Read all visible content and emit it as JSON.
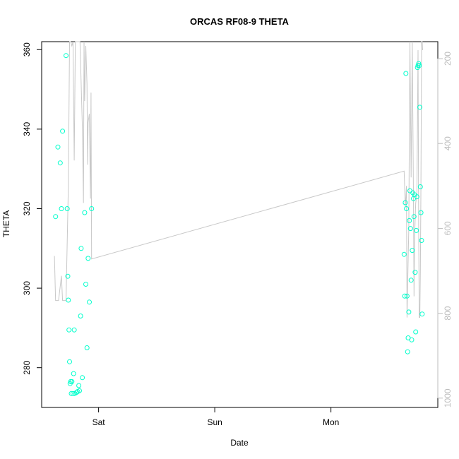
{
  "chart_data": {
    "type": "scatter",
    "title": "ORCAS RF08-9 THETA",
    "xlabel": "Date",
    "ylabel": "THETA",
    "x_ticks": [
      "Sat",
      "Sun",
      "Mon"
    ],
    "x_tick_days": [
      1,
      2,
      3
    ],
    "xlim_days": [
      0.51,
      3.92
    ],
    "ylim": [
      270,
      362
    ],
    "y_ticks": [
      280,
      300,
      320,
      340,
      360
    ],
    "y2lim": [
      1022,
      160
    ],
    "y2_ticks": [
      200,
      400,
      600,
      800,
      1000
    ],
    "grid": false,
    "colors": {
      "points": "#00ffcc",
      "line": "#c8c8c8",
      "right_axis": "#bdbdbd"
    },
    "series": [
      {
        "type": "scatter",
        "points": [
          [
            0.63,
            318
          ],
          [
            0.65,
            335.5
          ],
          [
            0.67,
            331.5
          ],
          [
            0.68,
            320
          ],
          [
            0.69,
            339.5
          ],
          [
            0.72,
            358.5
          ],
          [
            0.73,
            320
          ],
          [
            0.735,
            303
          ],
          [
            0.74,
            297
          ],
          [
            0.745,
            289.5
          ],
          [
            0.75,
            281.5
          ],
          [
            0.755,
            276
          ],
          [
            0.76,
            276.5
          ],
          [
            0.765,
            273.5
          ],
          [
            0.77,
            276.5
          ],
          [
            0.78,
            273.5
          ],
          [
            0.785,
            278.5
          ],
          [
            0.79,
            289.5
          ],
          [
            0.795,
            273.5
          ],
          [
            0.81,
            273.8
          ],
          [
            0.82,
            274
          ],
          [
            0.83,
            275.5
          ],
          [
            0.835,
            274.2
          ],
          [
            0.845,
            293
          ],
          [
            0.85,
            310
          ],
          [
            0.86,
            277.5
          ],
          [
            0.88,
            319
          ],
          [
            0.89,
            301
          ],
          [
            0.9,
            285
          ],
          [
            0.91,
            307.5
          ],
          [
            0.92,
            296.5
          ],
          [
            0.94,
            320
          ],
          [
            3.63,
            308.5
          ],
          [
            3.635,
            298
          ],
          [
            3.64,
            321.5
          ],
          [
            3.645,
            354
          ],
          [
            3.65,
            320
          ],
          [
            3.655,
            298
          ],
          [
            3.66,
            284
          ],
          [
            3.665,
            287.5
          ],
          [
            3.67,
            294
          ],
          [
            3.675,
            317
          ],
          [
            3.68,
            324.5
          ],
          [
            3.685,
            315
          ],
          [
            3.69,
            302
          ],
          [
            3.695,
            287
          ],
          [
            3.7,
            309.5
          ],
          [
            3.705,
            324
          ],
          [
            3.71,
            322.5
          ],
          [
            3.715,
            318
          ],
          [
            3.72,
            323.5
          ],
          [
            3.725,
            304
          ],
          [
            3.73,
            289
          ],
          [
            3.735,
            314.5
          ],
          [
            3.74,
            323
          ],
          [
            3.745,
            355.5
          ],
          [
            3.75,
            356
          ],
          [
            3.755,
            356.5
          ],
          [
            3.76,
            356
          ],
          [
            3.765,
            345.5
          ],
          [
            3.77,
            325.5
          ],
          [
            3.775,
            319
          ],
          [
            3.78,
            312
          ],
          [
            3.785,
            293.5
          ]
        ]
      },
      {
        "type": "line",
        "axis": "right",
        "points": [
          [
            0.62,
            665
          ],
          [
            0.63,
            770
          ],
          [
            0.655,
            770
          ],
          [
            0.68,
            712
          ],
          [
            0.69,
            770
          ],
          [
            0.72,
            770
          ],
          [
            0.74,
            500
          ],
          [
            0.75,
            160
          ],
          [
            0.76,
            160
          ],
          [
            0.77,
            170
          ],
          [
            0.78,
            160
          ],
          [
            0.785,
            290
          ],
          [
            0.79,
            440
          ],
          [
            0.8,
            160
          ],
          [
            0.83,
            160
          ],
          [
            0.84,
            160
          ],
          [
            0.86,
            360
          ],
          [
            0.87,
            540
          ],
          [
            0.875,
            160
          ],
          [
            0.88,
            300
          ],
          [
            0.89,
            170
          ],
          [
            0.9,
            260
          ],
          [
            0.905,
            450
          ],
          [
            0.91,
            350
          ],
          [
            0.92,
            330
          ],
          [
            0.93,
            530
          ],
          [
            0.935,
            280
          ],
          [
            0.94,
            672
          ],
          [
            3.63,
            465
          ],
          [
            3.64,
            550
          ],
          [
            3.65,
            500
          ],
          [
            3.655,
            810
          ],
          [
            3.66,
            740
          ],
          [
            3.67,
            600
          ],
          [
            3.68,
            160
          ],
          [
            3.69,
            480
          ],
          [
            3.7,
            160
          ],
          [
            3.71,
            520
          ],
          [
            3.715,
            760
          ],
          [
            3.72,
            620
          ],
          [
            3.73,
            540
          ],
          [
            3.74,
            520
          ],
          [
            3.75,
            180
          ],
          [
            3.755,
            600
          ],
          [
            3.76,
            810
          ],
          [
            3.765,
            810
          ],
          [
            3.77,
            700
          ],
          [
            3.775,
            500
          ],
          [
            3.78,
            160
          ],
          [
            3.785,
            160
          ],
          [
            3.79,
            180
          ]
        ]
      }
    ]
  }
}
